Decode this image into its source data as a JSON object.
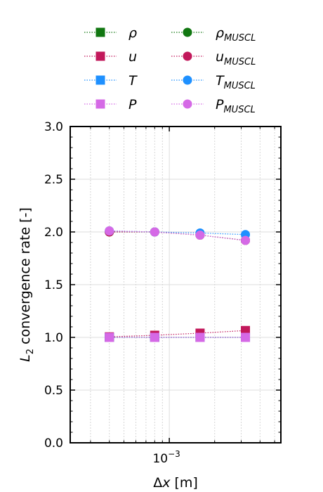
{
  "chart_data": {
    "type": "line",
    "title": "",
    "xlabel": "Δx [m]",
    "ylabel": "L2 convergence rate [-]",
    "x_scale": "log",
    "xlim": [
      0.00022,
      0.0055
    ],
    "ylim": [
      0,
      3
    ],
    "xticks": [
      {
        "value": 0.001,
        "base": "10",
        "exp": "−3"
      }
    ],
    "yticks": [
      "0.0",
      "0.5",
      "1.0",
      "1.5",
      "2.0",
      "2.5",
      "3.0"
    ],
    "grid": true,
    "legend_position": "top",
    "legend": [
      {
        "label": "ρ",
        "sub": "",
        "color": "#117711",
        "marker": "square"
      },
      {
        "label": "u",
        "sub": "",
        "color": "#c2185b",
        "marker": "square"
      },
      {
        "label": "T",
        "sub": "",
        "color": "#1e90ff",
        "marker": "square"
      },
      {
        "label": "P",
        "sub": "",
        "color": "#d569e6",
        "marker": "square"
      },
      {
        "label": "ρ",
        "sub": "MUSCL",
        "color": "#117711",
        "marker": "circle"
      },
      {
        "label": "u",
        "sub": "MUSCL",
        "color": "#c2185b",
        "marker": "circle"
      },
      {
        "label": "T",
        "sub": "MUSCL",
        "color": "#1e90ff",
        "marker": "circle"
      },
      {
        "label": "P",
        "sub": "MUSCL",
        "color": "#d569e6",
        "marker": "circle"
      }
    ],
    "x": [
      0.0004,
      0.0008,
      0.0016,
      0.0032
    ],
    "series": [
      {
        "name": "ρ",
        "marker": "square",
        "color": "#117711",
        "values": [
          1.0,
          1.0,
          1.0,
          1.0
        ]
      },
      {
        "name": "u",
        "marker": "square",
        "color": "#c2185b",
        "values": [
          1.005,
          1.02,
          1.04,
          1.065
        ]
      },
      {
        "name": "T",
        "marker": "square",
        "color": "#1e90ff",
        "values": [
          1.0,
          1.0,
          1.0,
          1.0
        ]
      },
      {
        "name": "P",
        "marker": "square",
        "color": "#d569e6",
        "values": [
          1.0,
          1.0,
          1.0,
          1.0
        ]
      },
      {
        "name": "ρ_MUSCL",
        "marker": "circle",
        "color": "#117711",
        "values": [
          2.0,
          2.0,
          1.97,
          1.92
        ]
      },
      {
        "name": "u_MUSCL",
        "marker": "circle",
        "color": "#c2185b",
        "values": [
          2.0,
          2.0,
          1.97,
          1.92
        ]
      },
      {
        "name": "T_MUSCL",
        "marker": "circle",
        "color": "#1e90ff",
        "values": [
          2.01,
          2.0,
          1.99,
          1.975
        ]
      },
      {
        "name": "P_MUSCL",
        "marker": "circle",
        "color": "#d569e6",
        "values": [
          2.01,
          2.0,
          1.97,
          1.92
        ]
      }
    ]
  }
}
